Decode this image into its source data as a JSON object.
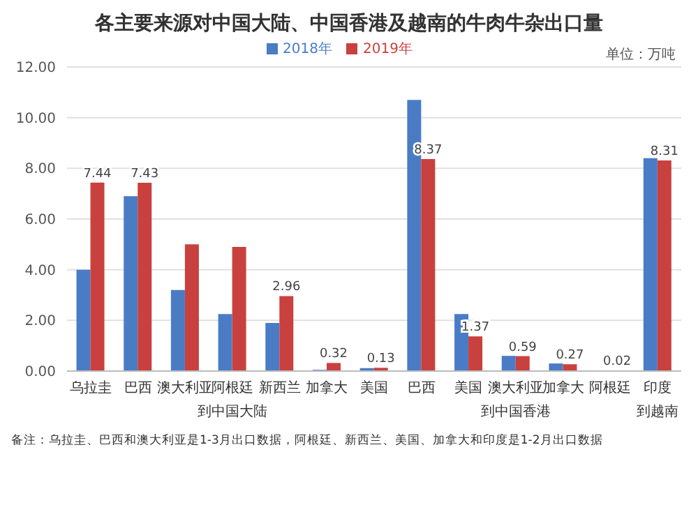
{
  "chart_data": {
    "type": "bar",
    "title": "各主要来源对中国大陆、中国香港及越南的牛肉牛杂出口量",
    "categories": [
      "乌拉圭",
      "巴西",
      "澳大利亚",
      "阿根廷",
      "新西兰",
      "加拿大",
      "美国",
      "巴西",
      "美国",
      "澳大利亚",
      "加拿大",
      "阿根廷",
      "印度"
    ],
    "series": [
      {
        "name": "2018年",
        "color": "#4a7cc6",
        "values": [
          4.0,
          6.9,
          3.2,
          2.25,
          1.9,
          0.05,
          0.12,
          10.7,
          2.25,
          0.6,
          0.3,
          null,
          8.4
        ]
      },
      {
        "name": "2019年",
        "color": "#c9413e",
        "values": [
          7.44,
          7.43,
          5.0,
          4.9,
          2.96,
          0.32,
          0.13,
          8.37,
          1.37,
          0.59,
          0.27,
          0.02,
          8.31
        ],
        "value_labels": [
          "7.44",
          "7.43",
          null,
          null,
          "2.96",
          "0.32",
          "0.13",
          "8.37",
          "1.37",
          "0.59",
          "0.27",
          "0.02",
          "8.31"
        ]
      }
    ],
    "ylim": [
      0,
      12
    ],
    "yticks": [
      {
        "value": 0,
        "label": "0.00"
      },
      {
        "value": 2,
        "label": "2.00"
      },
      {
        "value": 4,
        "label": "4.00"
      },
      {
        "value": 6,
        "label": "6.00"
      },
      {
        "value": 8,
        "label": "8.00"
      },
      {
        "value": 10,
        "label": "10.00"
      },
      {
        "value": 12,
        "label": "12.00"
      }
    ],
    "grid": "y",
    "legend": "top",
    "annotations": [
      "单位：万吨",
      "到中国大陆",
      "到中国香港",
      "到越南",
      "备注：乌拉圭、巴西和澳大利亚是1-3月出口数据，阿根廷、新西兰、美国、加拿大和印度是1-2月出口数据"
    ]
  }
}
